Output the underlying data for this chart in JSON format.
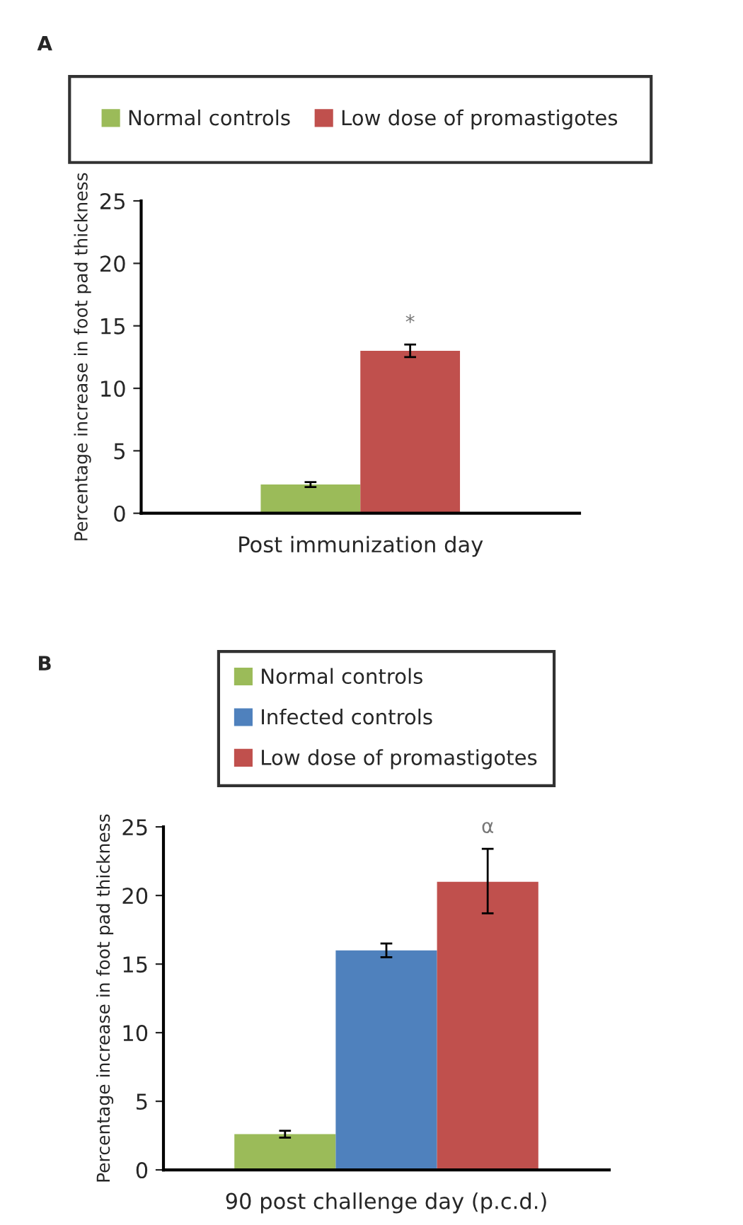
{
  "chart_data": [
    {
      "type": "bar",
      "title": "A",
      "xlabel": "Post immunization day",
      "ylabel": "Percentage increase in foot pad thickness",
      "categories": [
        null
      ],
      "series": [
        {
          "name": "Normal controls",
          "color": "#9bbb59",
          "values": [
            2.3
          ],
          "errors": [
            0.2
          ]
        },
        {
          "name": "Low dose of promastigotes",
          "color": "#c0504d",
          "values": [
            13.0
          ],
          "errors": [
            0.5
          ]
        }
      ],
      "ylim": [
        0,
        25
      ],
      "yticks": [
        0,
        5,
        10,
        15,
        20,
        25
      ],
      "legend": "top",
      "grid": false,
      "annotations": [
        "*"
      ]
    },
    {
      "type": "bar",
      "title": "B",
      "xlabel": "90 post challenge day (p.c.d.)",
      "ylabel": "Percentage increase in foot pad thickness",
      "categories": [
        null
      ],
      "series": [
        {
          "name": "Normal controls",
          "color": "#9bbb59",
          "values": [
            2.6
          ],
          "errors": [
            0.25
          ]
        },
        {
          "name": "Infected controls",
          "color": "#4f81bd",
          "values": [
            16.0
          ],
          "errors": [
            0.5
          ]
        },
        {
          "name": "Low dose of promastigotes",
          "color": "#c0504d",
          "values": [
            21.0
          ],
          "errors": [
            [
              18.7,
              23.4
            ]
          ]
        }
      ],
      "ylim": [
        0,
        25
      ],
      "yticks": [
        0,
        5,
        10,
        15,
        20,
        25
      ],
      "legend": "top",
      "grid": false,
      "annotations": [
        "α"
      ]
    }
  ]
}
